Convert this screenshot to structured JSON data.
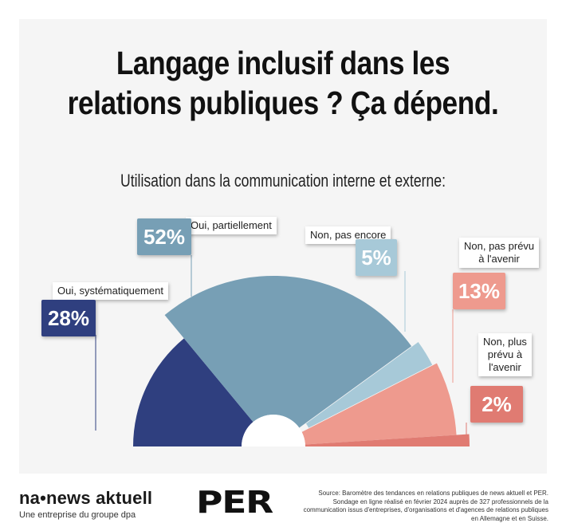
{
  "title_lines": [
    "Langage inclusif dans les",
    "relations publiques ? Ça dépend."
  ],
  "subtitle": "Utilisation dans la communication interne et externe:",
  "chart_data": {
    "type": "pie",
    "variant": "half-donut",
    "categories": [
      "Oui, systématiquement",
      "Oui, partiellement",
      "Non, pas encore",
      "Non, pas prévu à l'avenir",
      "Non, plus prévu à l'avenir"
    ],
    "values": [
      28,
      52,
      5,
      13,
      2
    ],
    "value_labels": [
      "28%",
      "52%",
      "5%",
      "13%",
      "2%"
    ],
    "colors": [
      "#2f3f7f",
      "#779fb5",
      "#a7c9d8",
      "#ee9a8e",
      "#e07b72"
    ],
    "label_lines": [
      [
        "Oui, systématiquement"
      ],
      [
        "Oui, partiellement"
      ],
      [
        "Non, pas encore"
      ],
      [
        "Non, pas prévu",
        "à l'avenir"
      ],
      [
        "Non, plus",
        "prévu à",
        "l'avenir"
      ]
    ]
  },
  "footer": {
    "brand": "na•news aktuell",
    "brand_tagline": "Une entreprise du groupe dpa",
    "partner": "PER",
    "source": "Source: Baromètre des tendances en relations publiques de news aktuell et PER. Sondage en ligne réalisé en février 2024 auprès de 327 professionnels de la communication issus d'entreprises, d'organisations et d'agences de relations publiques en Allemagne et en Suisse."
  }
}
